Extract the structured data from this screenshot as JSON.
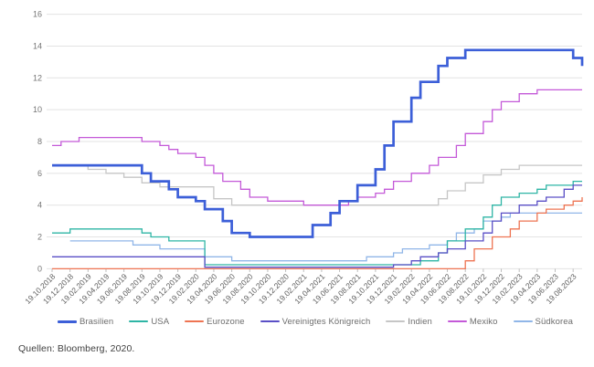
{
  "source_note": "Quellen: Bloomberg, 2020.",
  "chart_data": {
    "type": "line",
    "line_style": "step-after",
    "title": "",
    "xlabel": "",
    "ylabel": "",
    "ylim": [
      0,
      16
    ],
    "y_ticks": [
      0,
      2,
      4,
      6,
      8,
      10,
      12,
      14,
      16
    ],
    "grid": true,
    "legend_position": "bottom",
    "x_label_rotation_deg": -45,
    "x_labels": [
      "19.10.2018",
      "19.12.2018",
      "19.02.2019",
      "19.04.2019",
      "19.06.2019",
      "19.08.2019",
      "19.10.2019",
      "19.12.2019",
      "19.02.2020",
      "19.04.2020",
      "19.06.2020",
      "19.08.2020",
      "19.10.2020",
      "19.12.2020",
      "19.02.2021",
      "19.04.2021",
      "19.06.2021",
      "19.08.2021",
      "19.10.2021",
      "19.12.2021",
      "19.02.2022",
      "19.04.2022",
      "19.06.2022",
      "19.08.2022",
      "19.10.2022",
      "19.12.2022",
      "19.02.2023",
      "19.04.2023",
      "19.06.2023",
      "19.08.2023"
    ],
    "x_labels_every_n_points": 2,
    "colors": {
      "grid": "#e3e3e3",
      "tick": "#bdbdbd",
      "y_label": "#757575",
      "x_label": "#606060"
    },
    "series": [
      {
        "name": "Brasilien",
        "color": "#3c5fd8",
        "bold": true,
        "values": [
          6.5,
          6.5,
          6.5,
          6.5,
          6.5,
          6.5,
          6.5,
          6.5,
          6.5,
          6.5,
          6.0,
          5.5,
          5.5,
          5.0,
          4.5,
          4.5,
          4.25,
          3.75,
          3.75,
          3.0,
          2.25,
          2.25,
          2.0,
          2.0,
          2.0,
          2.0,
          2.0,
          2.0,
          2.0,
          2.75,
          2.75,
          3.5,
          4.25,
          4.25,
          5.25,
          5.25,
          6.25,
          7.75,
          9.25,
          9.25,
          10.75,
          11.75,
          11.75,
          12.75,
          13.25,
          13.25,
          13.75,
          13.75,
          13.75,
          13.75,
          13.75,
          13.75,
          13.75,
          13.75,
          13.75,
          13.75,
          13.75,
          13.75,
          13.25,
          12.75
        ]
      },
      {
        "name": "USA",
        "color": "#2eb5a5",
        "bold": false,
        "values": [
          2.25,
          2.25,
          2.5,
          2.5,
          2.5,
          2.5,
          2.5,
          2.5,
          2.5,
          2.5,
          2.25,
          2.0,
          2.0,
          1.75,
          1.75,
          1.75,
          1.75,
          0.25,
          0.25,
          0.25,
          0.25,
          0.25,
          0.25,
          0.25,
          0.25,
          0.25,
          0.25,
          0.25,
          0.25,
          0.25,
          0.25,
          0.25,
          0.25,
          0.25,
          0.25,
          0.25,
          0.25,
          0.25,
          0.25,
          0.25,
          0.25,
          0.5,
          0.5,
          1.0,
          1.75,
          1.75,
          2.5,
          2.5,
          3.25,
          4.0,
          4.5,
          4.5,
          4.75,
          4.75,
          5.0,
          5.25,
          5.25,
          5.25,
          5.5,
          5.5
        ]
      },
      {
        "name": "Eurozone",
        "color": "#ee7452",
        "bold": false,
        "values": [
          0,
          0,
          0,
          0,
          0,
          0,
          0,
          0,
          0,
          0,
          0,
          0,
          0,
          0,
          0,
          0,
          0,
          0,
          0,
          0,
          0,
          0,
          0,
          0,
          0,
          0,
          0,
          0,
          0,
          0,
          0,
          0,
          0,
          0,
          0,
          0,
          0,
          0,
          0,
          0,
          0,
          0,
          0,
          0,
          0,
          0,
          0.5,
          1.25,
          1.25,
          2.0,
          2.0,
          2.5,
          3.0,
          3.0,
          3.5,
          3.75,
          3.75,
          4.0,
          4.25,
          4.5
        ]
      },
      {
        "name": "Vereinigtes Königreich",
        "color": "#5a4fc6",
        "bold": false,
        "values": [
          0.75,
          0.75,
          0.75,
          0.75,
          0.75,
          0.75,
          0.75,
          0.75,
          0.75,
          0.75,
          0.75,
          0.75,
          0.75,
          0.75,
          0.75,
          0.75,
          0.75,
          0.1,
          0.1,
          0.1,
          0.1,
          0.1,
          0.1,
          0.1,
          0.1,
          0.1,
          0.1,
          0.1,
          0.1,
          0.1,
          0.1,
          0.1,
          0.1,
          0.1,
          0.1,
          0.1,
          0.1,
          0.1,
          0.25,
          0.25,
          0.5,
          0.75,
          0.75,
          1.0,
          1.25,
          1.25,
          1.75,
          1.75,
          2.25,
          3.0,
          3.5,
          3.5,
          4.0,
          4.0,
          4.25,
          4.5,
          4.5,
          5.0,
          5.25,
          5.25
        ]
      },
      {
        "name": "Indien",
        "color": "#c6c6c6",
        "bold": false,
        "values": [
          6.5,
          6.5,
          6.5,
          6.5,
          6.25,
          6.25,
          6.0,
          6.0,
          5.75,
          5.75,
          5.4,
          5.4,
          5.15,
          5.15,
          5.15,
          5.15,
          5.15,
          5.15,
          4.4,
          4.4,
          4.0,
          4.0,
          4.0,
          4.0,
          4.0,
          4.0,
          4.0,
          4.0,
          4.0,
          4.0,
          4.0,
          4.0,
          4.0,
          4.0,
          4.0,
          4.0,
          4.0,
          4.0,
          4.0,
          4.0,
          4.0,
          4.0,
          4.0,
          4.4,
          4.9,
          4.9,
          5.4,
          5.4,
          5.9,
          5.9,
          6.25,
          6.25,
          6.5,
          6.5,
          6.5,
          6.5,
          6.5,
          6.5,
          6.5,
          6.5
        ]
      },
      {
        "name": "Mexiko",
        "color": "#c459d8",
        "bold": false,
        "values": [
          7.75,
          8.0,
          8.0,
          8.25,
          8.25,
          8.25,
          8.25,
          8.25,
          8.25,
          8.25,
          8.0,
          8.0,
          7.75,
          7.5,
          7.25,
          7.25,
          7.0,
          6.5,
          6.0,
          5.5,
          5.5,
          5.0,
          4.5,
          4.5,
          4.25,
          4.25,
          4.25,
          4.25,
          4.0,
          4.0,
          4.0,
          4.0,
          4.0,
          4.25,
          4.5,
          4.5,
          4.75,
          5.0,
          5.5,
          5.5,
          6.0,
          6.0,
          6.5,
          7.0,
          7.0,
          7.75,
          8.5,
          8.5,
          9.25,
          10.0,
          10.5,
          10.5,
          11.0,
          11.0,
          11.25,
          11.25,
          11.25,
          11.25,
          11.25,
          11.25
        ]
      },
      {
        "name": "Südkorea",
        "color": "#90b6e8",
        "bold": false,
        "values": [
          null,
          null,
          1.75,
          1.75,
          1.75,
          1.75,
          1.75,
          1.75,
          1.75,
          1.5,
          1.5,
          1.5,
          1.25,
          1.25,
          1.25,
          1.25,
          1.25,
          0.75,
          0.75,
          0.75,
          0.5,
          0.5,
          0.5,
          0.5,
          0.5,
          0.5,
          0.5,
          0.5,
          0.5,
          0.5,
          0.5,
          0.5,
          0.5,
          0.5,
          0.5,
          0.75,
          0.75,
          0.75,
          1.0,
          1.25,
          1.25,
          1.25,
          1.5,
          1.5,
          1.75,
          2.25,
          2.25,
          2.5,
          3.0,
          3.0,
          3.25,
          3.5,
          3.5,
          3.5,
          3.5,
          3.5,
          3.5,
          3.5,
          3.5,
          3.5
        ]
      }
    ]
  }
}
